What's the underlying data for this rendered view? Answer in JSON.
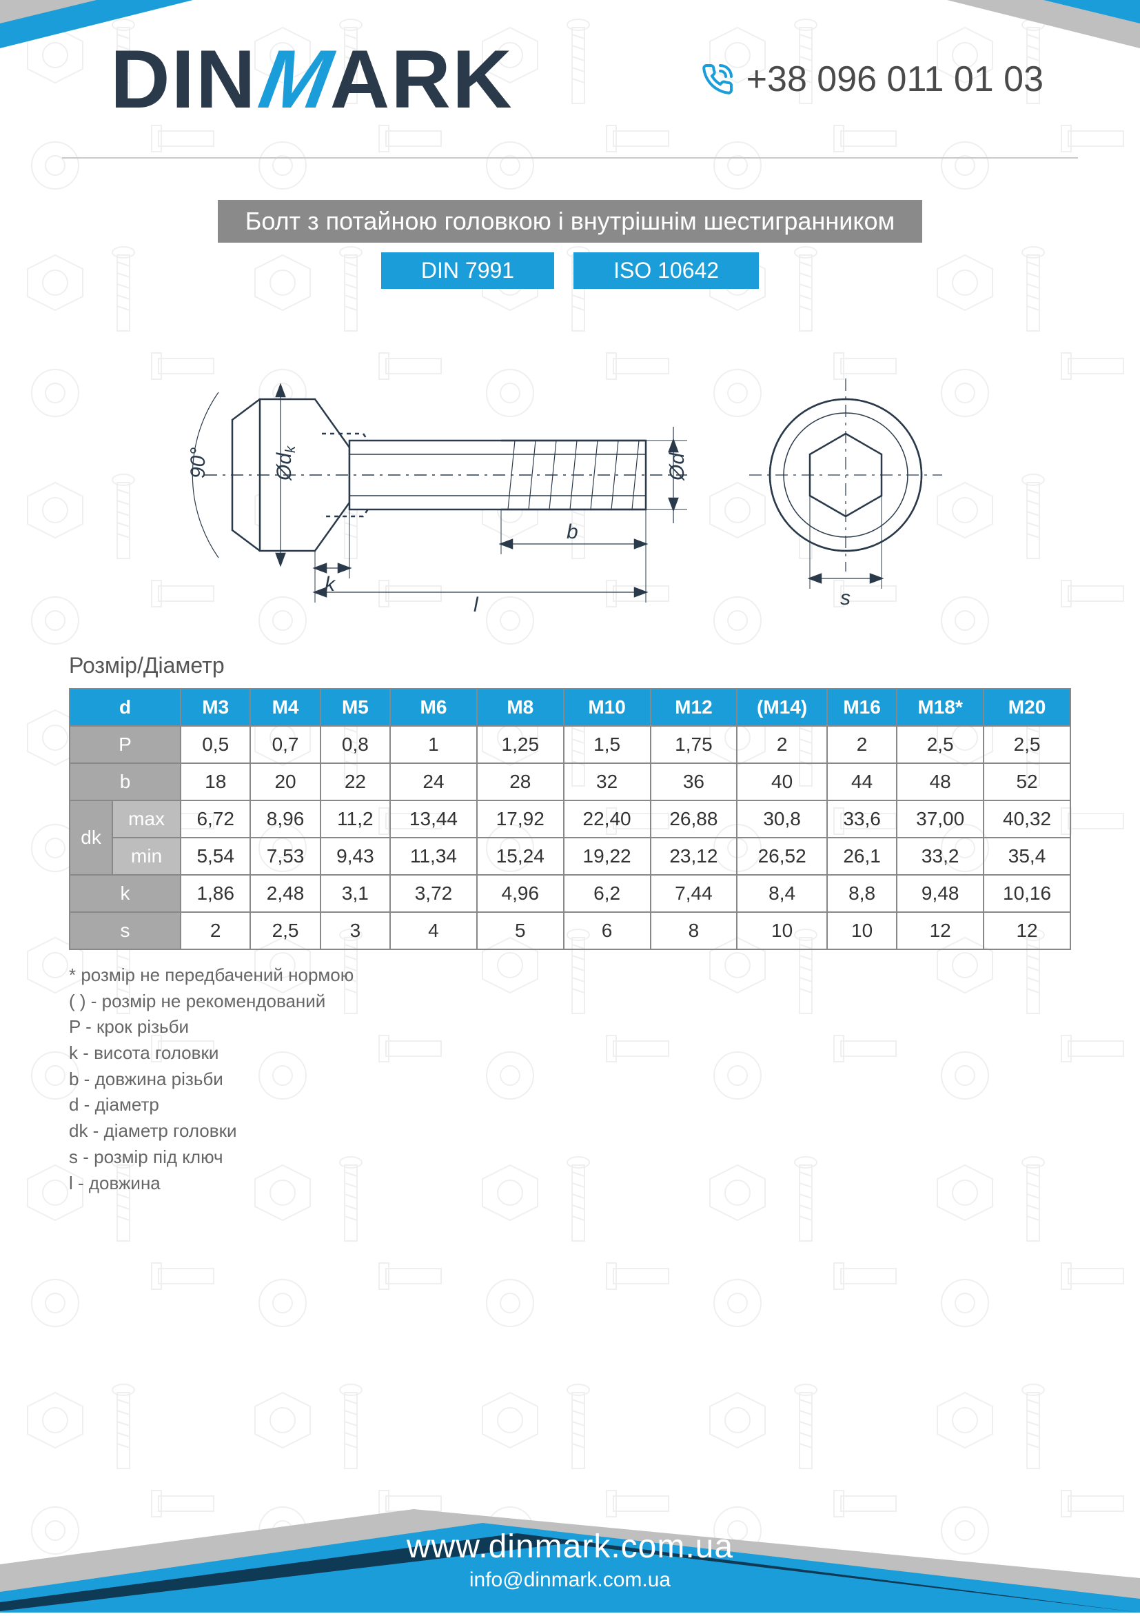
{
  "brand": {
    "pre": "DIN",
    "m": "M",
    "post": "ARK"
  },
  "phone": "+38 096 011 01 03",
  "title": "Болт з потайною головкою і внутрішнім шестигранником",
  "standards": {
    "din": "DIN 7991",
    "iso": "ISO 10642"
  },
  "drawing": {
    "labels": {
      "angle": "90°",
      "dk": "Ød_k",
      "d": "Ød",
      "k": "k",
      "b": "b",
      "l": "l",
      "s": "s"
    }
  },
  "section_label": "Розмір/Діаметр",
  "table": {
    "header_first": "d",
    "columns": [
      "M3",
      "M4",
      "M5",
      "M6",
      "M8",
      "M10",
      "M12",
      "(M14)",
      "M16",
      "M18*",
      "M20"
    ],
    "rows": [
      {
        "label": "P",
        "sub": null,
        "cells": [
          "0,5",
          "0,7",
          "0,8",
          "1",
          "1,25",
          "1,5",
          "1,75",
          "2",
          "2",
          "2,5",
          "2,5"
        ]
      },
      {
        "label": "b",
        "sub": null,
        "cells": [
          "18",
          "20",
          "22",
          "24",
          "28",
          "32",
          "36",
          "40",
          "44",
          "48",
          "52"
        ]
      },
      {
        "label": "dk",
        "sub": "max",
        "cells": [
          "6,72",
          "8,96",
          "11,2",
          "13,44",
          "17,92",
          "22,40",
          "26,88",
          "30,8",
          "33,6",
          "37,00",
          "40,32"
        ]
      },
      {
        "label": "",
        "sub": "min",
        "cells": [
          "5,54",
          "7,53",
          "9,43",
          "11,34",
          "15,24",
          "19,22",
          "23,12",
          "26,52",
          "26,1",
          "33,2",
          "35,4"
        ]
      },
      {
        "label": "k",
        "sub": null,
        "cells": [
          "1,86",
          "2,48",
          "3,1",
          "3,72",
          "4,96",
          "6,2",
          "7,44",
          "8,4",
          "8,8",
          "9,48",
          "10,16"
        ]
      },
      {
        "label": "s",
        "sub": null,
        "cells": [
          "2",
          "2,5",
          "3",
          "4",
          "5",
          "6",
          "8",
          "10",
          "10",
          "12",
          "12"
        ]
      }
    ]
  },
  "notes": [
    "* розмір не передбачений нормою",
    "( ) - розмір не рекомендований",
    "P - крок різьби",
    "k - висота головки",
    "b - довжина різьби",
    "d - діаметр",
    "dk - діаметр головки",
    "s - розмір під ключ",
    "l - довжина"
  ],
  "footer": {
    "site": "www.dinmark.com.ua",
    "mail": "info@dinmark.com.ua"
  },
  "colors": {
    "accent": "#1b9dd9",
    "gray_bar": "#8a8a8a",
    "row_gray": "#a8a8a8",
    "row_gray2": "#bdbdbd",
    "border": "#888888",
    "text": "#333333"
  }
}
